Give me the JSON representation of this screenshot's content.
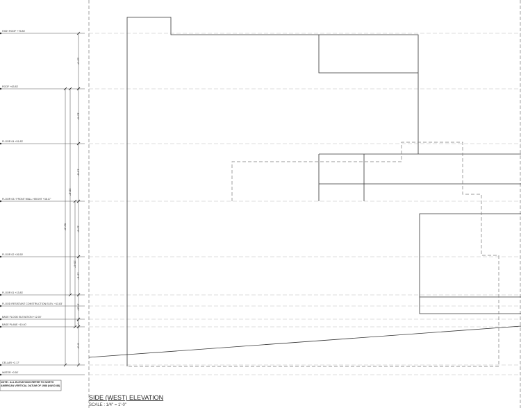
{
  "levels": [
    {
      "label": "HIGH ROOF +75.83'"
    },
    {
      "label": "ROOF +63.83'"
    },
    {
      "label": "FLOOR 04 +51.83'"
    },
    {
      "label": "FLOOR 03 / FRONT WALL HEIGHT +38.17'"
    },
    {
      "label": "FLOOR 02 +26.50'"
    },
    {
      "label": "FLOOR 01 +13.83'"
    },
    {
      "label": "FLOOD RESISTANT CONSTRUCTION ELEV. +13.83'"
    },
    {
      "label": "BASE FLOOD ELEVATION +12.00'"
    },
    {
      "label": "BASE PLANE +10.40'"
    },
    {
      "label": "CELLAR +2.17'"
    },
    {
      "label": "WATER +0.50'"
    }
  ],
  "dimensions": [
    "12'-0\"",
    "12'-0\"",
    "13'-8\"",
    "11'-8\"",
    "12'-8\"",
    "1'-10\"",
    "1'-7\"",
    "8'-3\"",
    "51'-6\"",
    "38'-8\"",
    "26'-0\""
  ],
  "note": "NOTE : ALL ELEVATIONS REFER TO NORTH AMERICAN VERTICAL DATUM OF 1988 (NAVD 88)",
  "title": "SIDE (WEST) ELEVATION",
  "scale": "SCALE : 1/4\" = 1'-0\""
}
